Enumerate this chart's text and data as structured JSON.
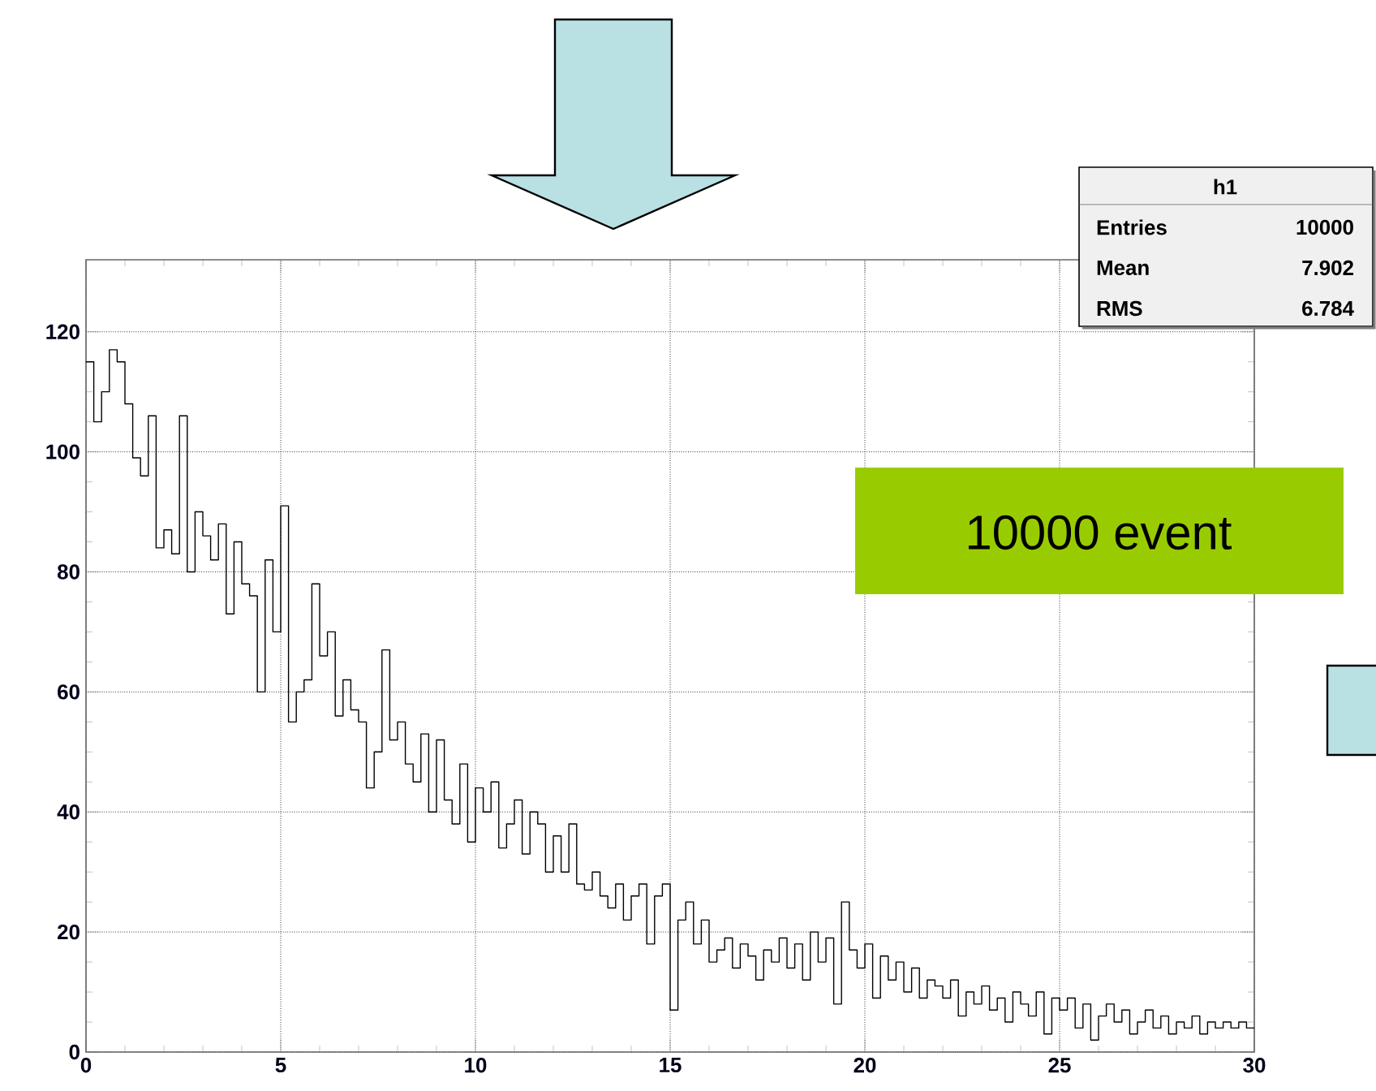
{
  "chart_data": {
    "type": "histogram",
    "bins": [
      0,
      0.2,
      0.4,
      0.6,
      0.8,
      1,
      1.2,
      1.4,
      1.6,
      1.8,
      2,
      2.2,
      2.4,
      2.6,
      2.8,
      3,
      3.2,
      3.4,
      3.6,
      3.8,
      4,
      4.2,
      4.4,
      4.6,
      4.8,
      5,
      5.2,
      5.4,
      5.6,
      5.8,
      6,
      6.2,
      6.4,
      6.6,
      6.8,
      7,
      7.2,
      7.4,
      7.6,
      7.8,
      8,
      8.2,
      8.4,
      8.6,
      8.8,
      9,
      9.2,
      9.4,
      9.6,
      9.8,
      10,
      10.2,
      10.4,
      10.6,
      10.8,
      11,
      11.2,
      11.4,
      11.6,
      11.8,
      12,
      12.2,
      12.4,
      12.6,
      12.8,
      13,
      13.2,
      13.4,
      13.6,
      13.8,
      14,
      14.2,
      14.4,
      14.6,
      14.8,
      15,
      15.2,
      15.4,
      15.6,
      15.8,
      16,
      16.2,
      16.4,
      16.6,
      16.8,
      17,
      17.2,
      17.4,
      17.6,
      17.8,
      18,
      18.2,
      18.4,
      18.6,
      18.8,
      19,
      19.2,
      19.4,
      19.6,
      19.8,
      20,
      20.2,
      20.4,
      20.6,
      20.8,
      21,
      21.2,
      21.4,
      21.6,
      21.8,
      22,
      22.2,
      22.4,
      22.6,
      22.8,
      23,
      23.2,
      23.4,
      23.6,
      23.8,
      24,
      24.2,
      24.4,
      24.6,
      24.8,
      25,
      25.2,
      25.4,
      25.6,
      25.8,
      26,
      26.2,
      26.4,
      26.6,
      26.8,
      27,
      27.2,
      27.4,
      27.6,
      27.8,
      28,
      28.2,
      28.4,
      28.6,
      28.8,
      29,
      29.2,
      29.4,
      29.6,
      29.8,
      30
    ],
    "values": [
      115,
      105,
      110,
      117,
      115,
      108,
      99,
      96,
      106,
      84,
      87,
      83,
      106,
      80,
      90,
      86,
      82,
      88,
      73,
      85,
      78,
      76,
      60,
      82,
      70,
      91,
      55,
      60,
      62,
      78,
      66,
      70,
      56,
      62,
      57,
      55,
      44,
      50,
      67,
      52,
      55,
      48,
      45,
      53,
      40,
      52,
      42,
      38,
      48,
      35,
      44,
      40,
      45,
      34,
      38,
      42,
      33,
      40,
      38,
      30,
      36,
      30,
      38,
      28,
      27,
      30,
      26,
      24,
      28,
      22,
      26,
      28,
      18,
      26,
      28,
      7,
      22,
      25,
      18,
      22,
      15,
      17,
      19,
      14,
      18,
      16,
      12,
      17,
      15,
      19,
      14,
      18,
      12,
      20,
      15,
      19,
      8,
      25,
      17,
      14,
      18,
      9,
      16,
      12,
      15,
      10,
      14,
      9,
      12,
      11,
      9,
      12,
      6,
      10,
      8,
      11,
      7,
      9,
      5,
      10,
      8,
      6,
      10,
      3,
      9,
      7,
      9,
      4,
      8,
      2,
      6,
      8,
      5,
      7,
      3,
      5,
      7,
      4,
      6,
      3,
      5,
      4,
      6,
      3,
      5,
      4,
      5,
      4,
      5,
      4
    ],
    "color": "#000000",
    "xlim": [
      0,
      30
    ],
    "xticks": [
      0,
      5,
      10,
      15,
      20,
      25,
      30
    ],
    "ylim": [
      0,
      132
    ],
    "yticks": [
      0,
      20,
      40,
      60,
      80,
      100,
      120
    ],
    "grid": true,
    "annotations": [
      "h1",
      "Entries",
      "10000",
      "Mean",
      "7.902",
      "RMS",
      "6.784",
      "10000 event"
    ]
  }
}
